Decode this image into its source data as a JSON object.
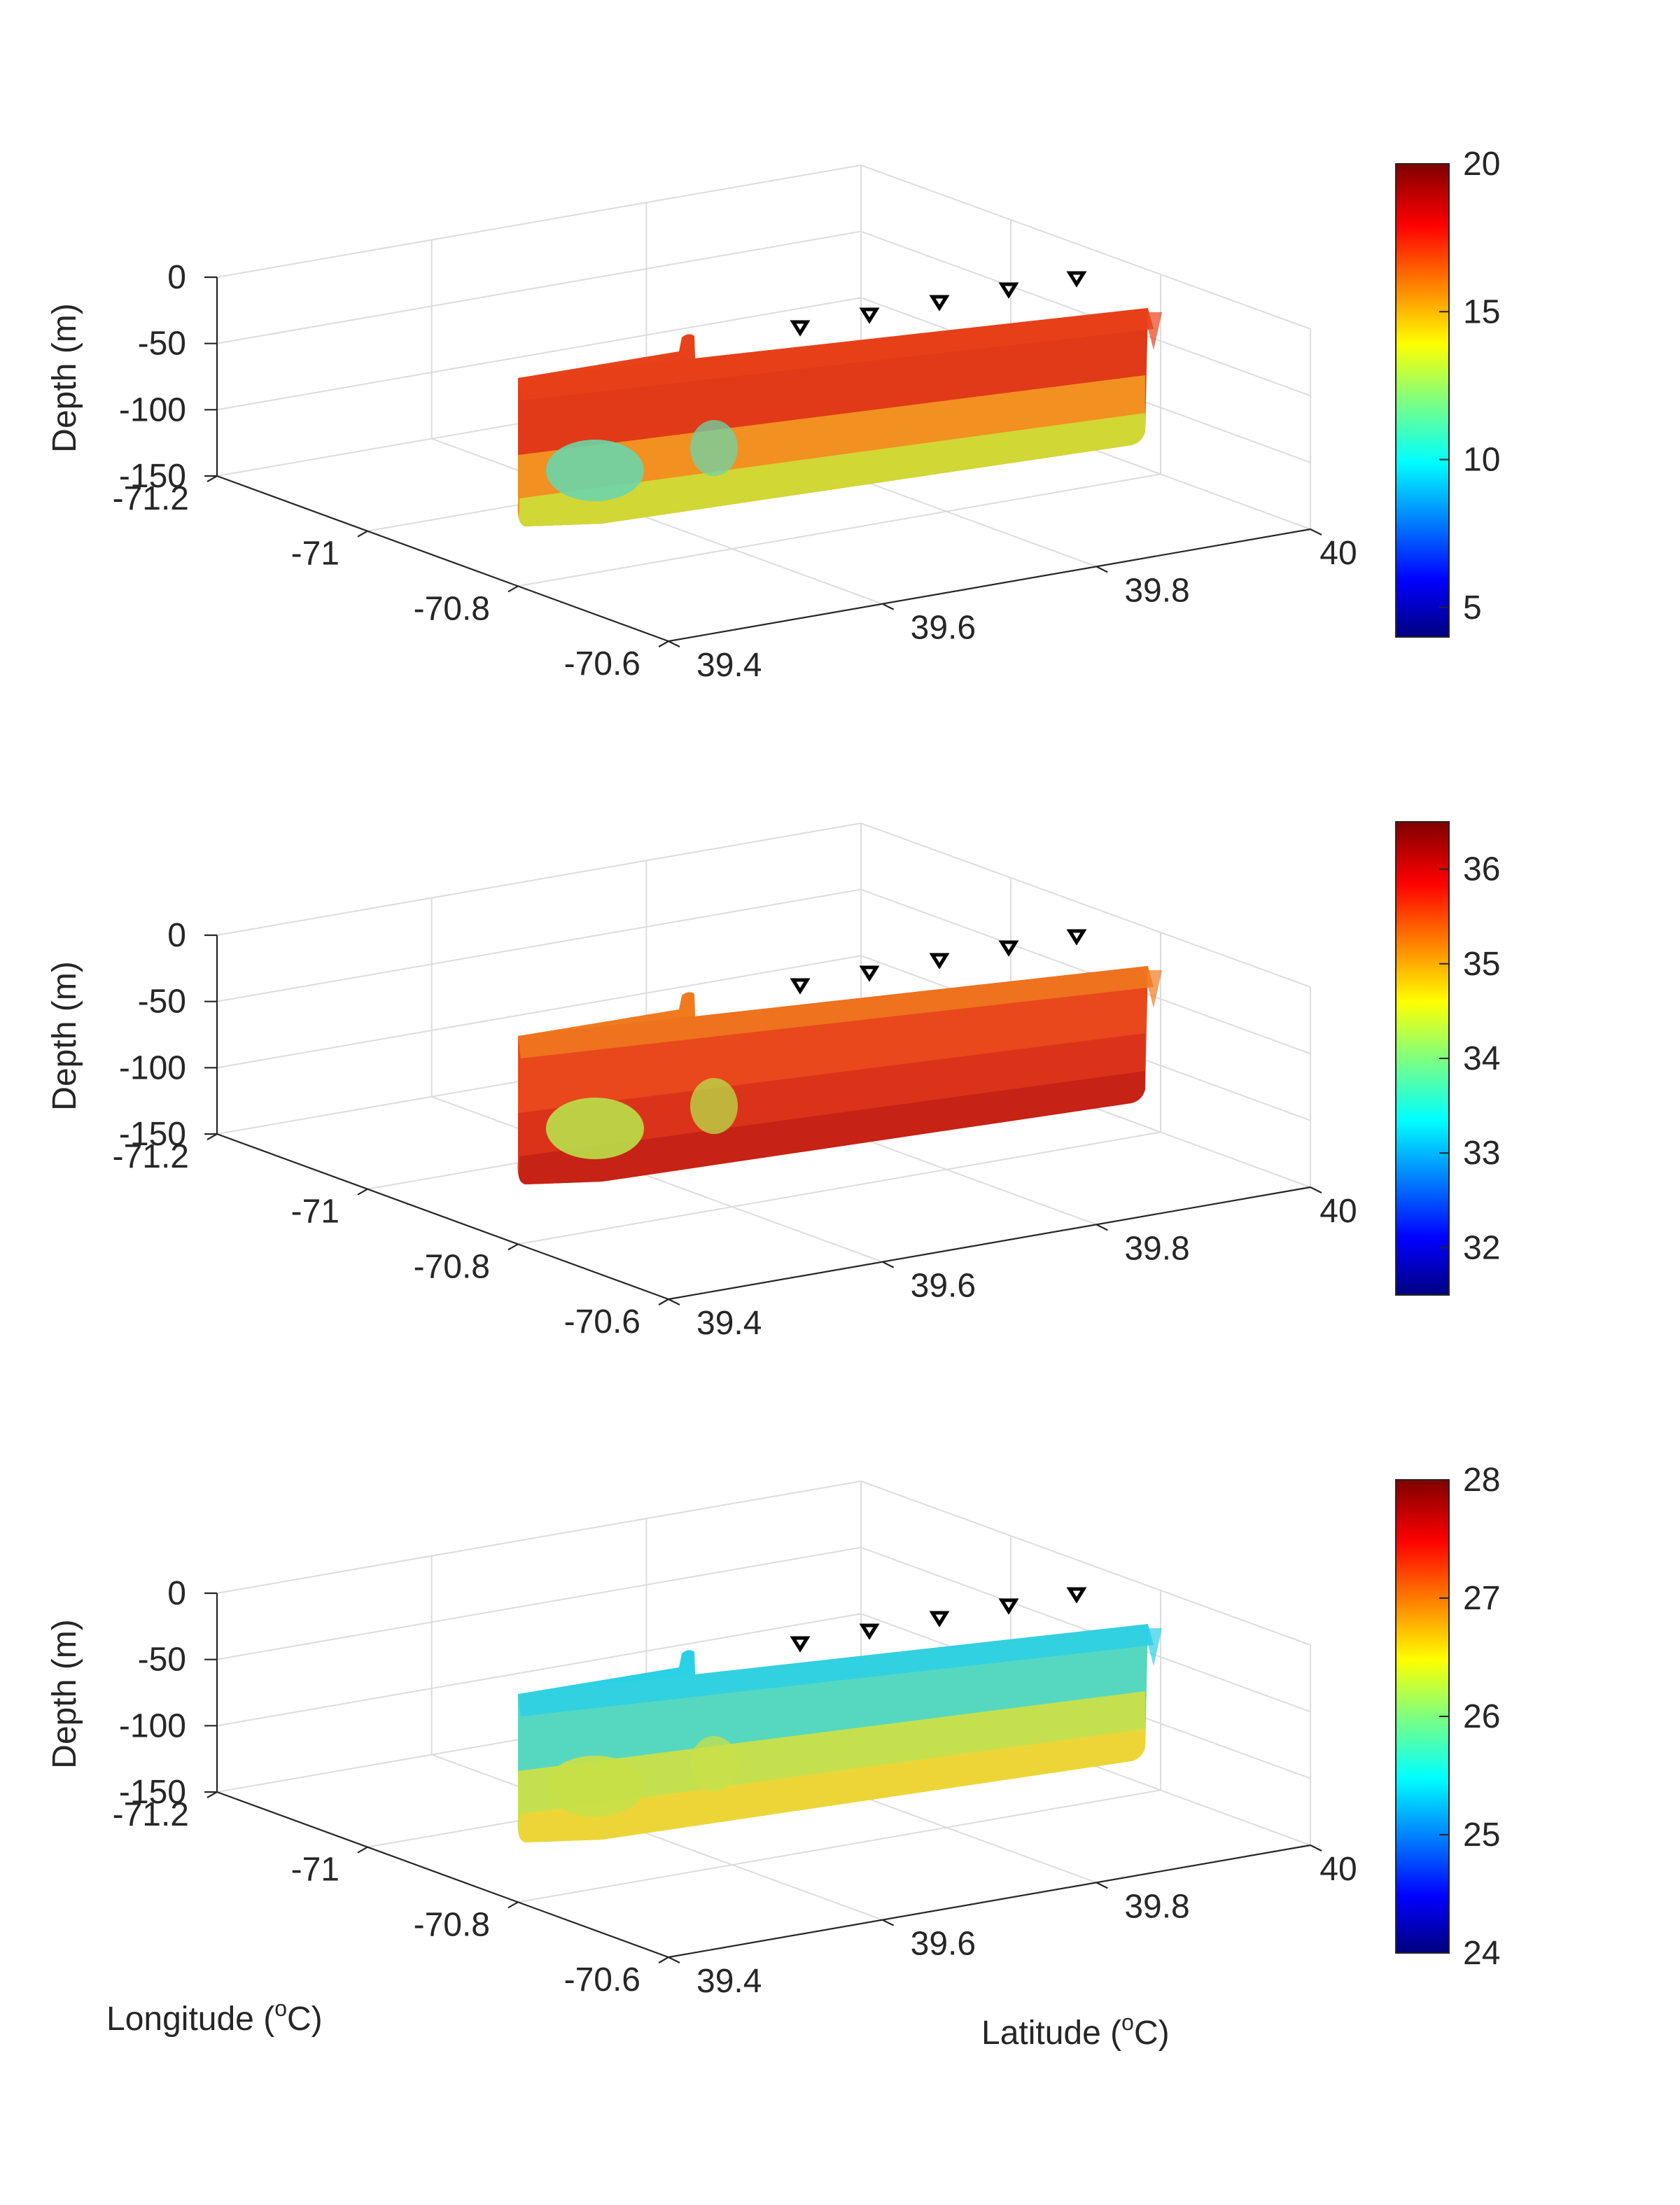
{
  "figure": {
    "xlabel": "Longitude (°C)",
    "xlabel_parts": [
      "Longitude (",
      "o",
      "C)"
    ],
    "ylabel": "Latitude (°C)",
    "ylabel_parts": [
      "Latitude (",
      "o",
      "C)"
    ],
    "zlabel": "Depth (m)"
  },
  "chart_data": [
    {
      "type": "3d-section",
      "zlabel": "Depth (m)",
      "x_ticks": [
        "-71.2",
        "-71",
        "-70.8",
        "-70.6"
      ],
      "y_ticks": [
        "39.4",
        "39.6",
        "39.8",
        "40"
      ],
      "z_ticks": [
        "0",
        "-50",
        "-100",
        "-150"
      ],
      "xlim": [
        -71.2,
        -70.6
      ],
      "ylim": [
        39.4,
        40.0
      ],
      "zlim": [
        -150,
        0
      ],
      "colorbar": {
        "ticks": [
          "20",
          "15",
          "10",
          "5"
        ],
        "range": [
          4,
          20
        ],
        "colormap": "jet"
      },
      "section_colors": {
        "top": "#e8421a",
        "upper": "#e03a18",
        "lower": "#f5a023",
        "deep_core": "#6cd6a8",
        "bottom": "#c8e83a"
      },
      "stations": [
        {
          "lon": -71.0,
          "lat": 39.85
        },
        {
          "lon": -71.0,
          "lat": 39.75
        },
        {
          "lon": -71.0,
          "lat": 39.65
        },
        {
          "lon": -71.0,
          "lat": 39.55
        },
        {
          "lon": -71.0,
          "lat": 39.45
        }
      ],
      "grid": true
    },
    {
      "type": "3d-section",
      "zlabel": "Depth (m)",
      "x_ticks": [
        "-71.2",
        "-71",
        "-70.8",
        "-70.6"
      ],
      "y_ticks": [
        "39.4",
        "39.6",
        "39.8",
        "40"
      ],
      "z_ticks": [
        "0",
        "-50",
        "-100",
        "-150"
      ],
      "xlim": [
        -71.2,
        -70.6
      ],
      "ylim": [
        39.4,
        40.0
      ],
      "zlim": [
        -150,
        0
      ],
      "colorbar": {
        "ticks": [
          "36",
          "35",
          "34",
          "33",
          "32"
        ],
        "range": [
          31.5,
          36.5
        ],
        "colormap": "jet"
      },
      "section_colors": {
        "top": "#f07a1e",
        "upper": "#e8481c",
        "lower": "#d8301a",
        "deep_core": "#b8e04a",
        "bottom": "#c01e14"
      },
      "stations": [
        {
          "lon": -71.0,
          "lat": 39.85
        },
        {
          "lon": -71.0,
          "lat": 39.75
        },
        {
          "lon": -71.0,
          "lat": 39.65
        },
        {
          "lon": -71.0,
          "lat": 39.55
        },
        {
          "lon": -71.0,
          "lat": 39.45
        }
      ],
      "grid": true
    },
    {
      "type": "3d-section",
      "zlabel": "Depth (m)",
      "x_ticks": [
        "-71.2",
        "-71",
        "-70.8",
        "-70.6"
      ],
      "y_ticks": [
        "39.4",
        "39.6",
        "39.8",
        "40"
      ],
      "z_ticks": [
        "0",
        "-50",
        "-100",
        "-150"
      ],
      "xlim": [
        -71.2,
        -70.6
      ],
      "ylim": [
        39.4,
        40.0
      ],
      "zlim": [
        -150,
        0
      ],
      "colorbar": {
        "ticks": [
          "28",
          "27",
          "26",
          "25",
          "24"
        ],
        "range": [
          24,
          28
        ],
        "colormap": "jet"
      },
      "section_colors": {
        "top": "#2ad0e6",
        "upper": "#56d8c0",
        "lower": "#d8e23a",
        "deep_core": "#c8e048",
        "bottom": "#f8d232"
      },
      "stations": [
        {
          "lon": -71.0,
          "lat": 39.85
        },
        {
          "lon": -71.0,
          "lat": 39.75
        },
        {
          "lon": -71.0,
          "lat": 39.65
        },
        {
          "lon": -71.0,
          "lat": 39.55
        },
        {
          "lon": -71.0,
          "lat": 39.45
        }
      ],
      "grid": true
    }
  ]
}
